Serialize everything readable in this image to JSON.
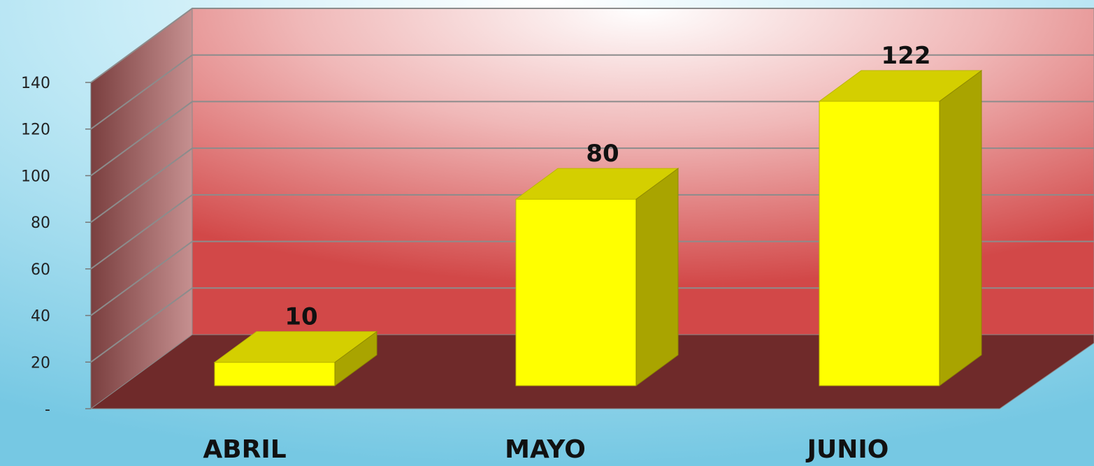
{
  "chart_data": {
    "type": "bar",
    "categories": [
      "ABRIL",
      "MAYO",
      "JUNIO"
    ],
    "values": [
      10,
      80,
      122
    ],
    "data_labels": [
      "10",
      "80",
      "122"
    ],
    "title": "",
    "xlabel": "",
    "ylabel": "",
    "ylim": [
      0,
      140
    ],
    "yticks": [
      0,
      20,
      40,
      60,
      80,
      100,
      120,
      140
    ],
    "ytick_labels": [
      "-",
      "20",
      "40",
      "60",
      "80",
      "100",
      "120",
      "140"
    ],
    "grid": true,
    "style": "3d",
    "colors": {
      "background": "#a9dcee",
      "back_wall": "#e36a6a",
      "side_wall": "#8a4f4f",
      "floor": "#6f2a2a",
      "bar_front": "#ffff00",
      "bar_top": "#d4cf00",
      "bar_side": "#a9a400"
    }
  }
}
